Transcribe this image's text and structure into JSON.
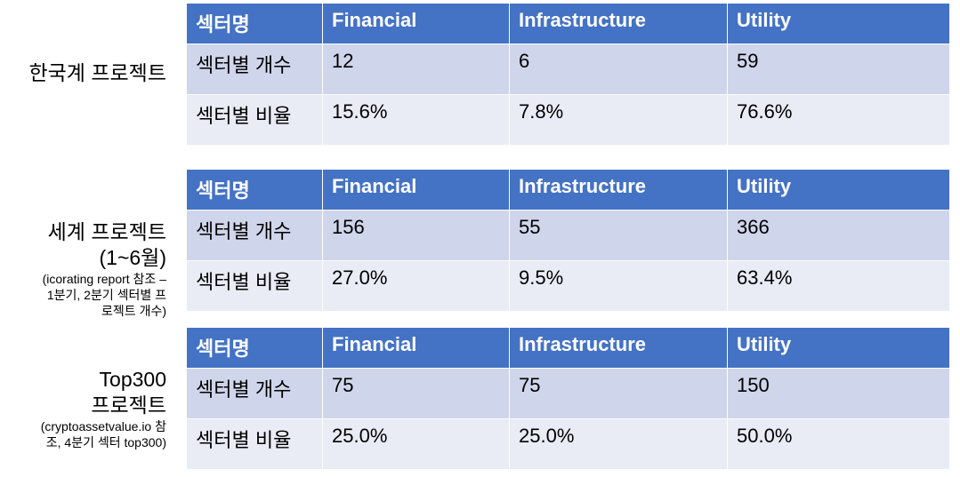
{
  "sections": [
    {
      "label": [
        "한국계 프로젝트"
      ],
      "table": {
        "header": [
          "섹터명",
          "Financial",
          "Infrastructure",
          "Utility"
        ],
        "rows": [
          [
            "섹터별 개수",
            "12",
            "6",
            "59"
          ],
          [
            "섹터별 비율",
            "15.6%",
            "7.8%",
            "76.6%"
          ]
        ]
      }
    },
    {
      "label": [
        "세계 프로젝트",
        "(1~6월)"
      ],
      "note": [
        "(icorating report 참조 –",
        "1분기, 2분기 섹터별 프",
        "로젝트 개수)"
      ],
      "table": {
        "header": [
          "섹터명",
          "Financial",
          "Infrastructure",
          "Utility"
        ],
        "rows": [
          [
            "섹터별 개수",
            "156",
            "55",
            "366"
          ],
          [
            "섹터별 비율",
            "27.0%",
            "9.5%",
            "63.4%"
          ]
        ]
      }
    },
    {
      "label": [
        "Top300",
        "프로젝트"
      ],
      "note": [
        "(cryptoassetvalue.io 참",
        "조, 4분기 섹터 top300)"
      ],
      "table": {
        "header": [
          "섹터명",
          "Financial",
          "Infrastructure",
          "Utility"
        ],
        "rows": [
          [
            "섹터별 개수",
            "75",
            "75",
            "150"
          ],
          [
            "섹터별 비율",
            "25.0%",
            "25.0%",
            "50.0%"
          ]
        ]
      }
    }
  ]
}
